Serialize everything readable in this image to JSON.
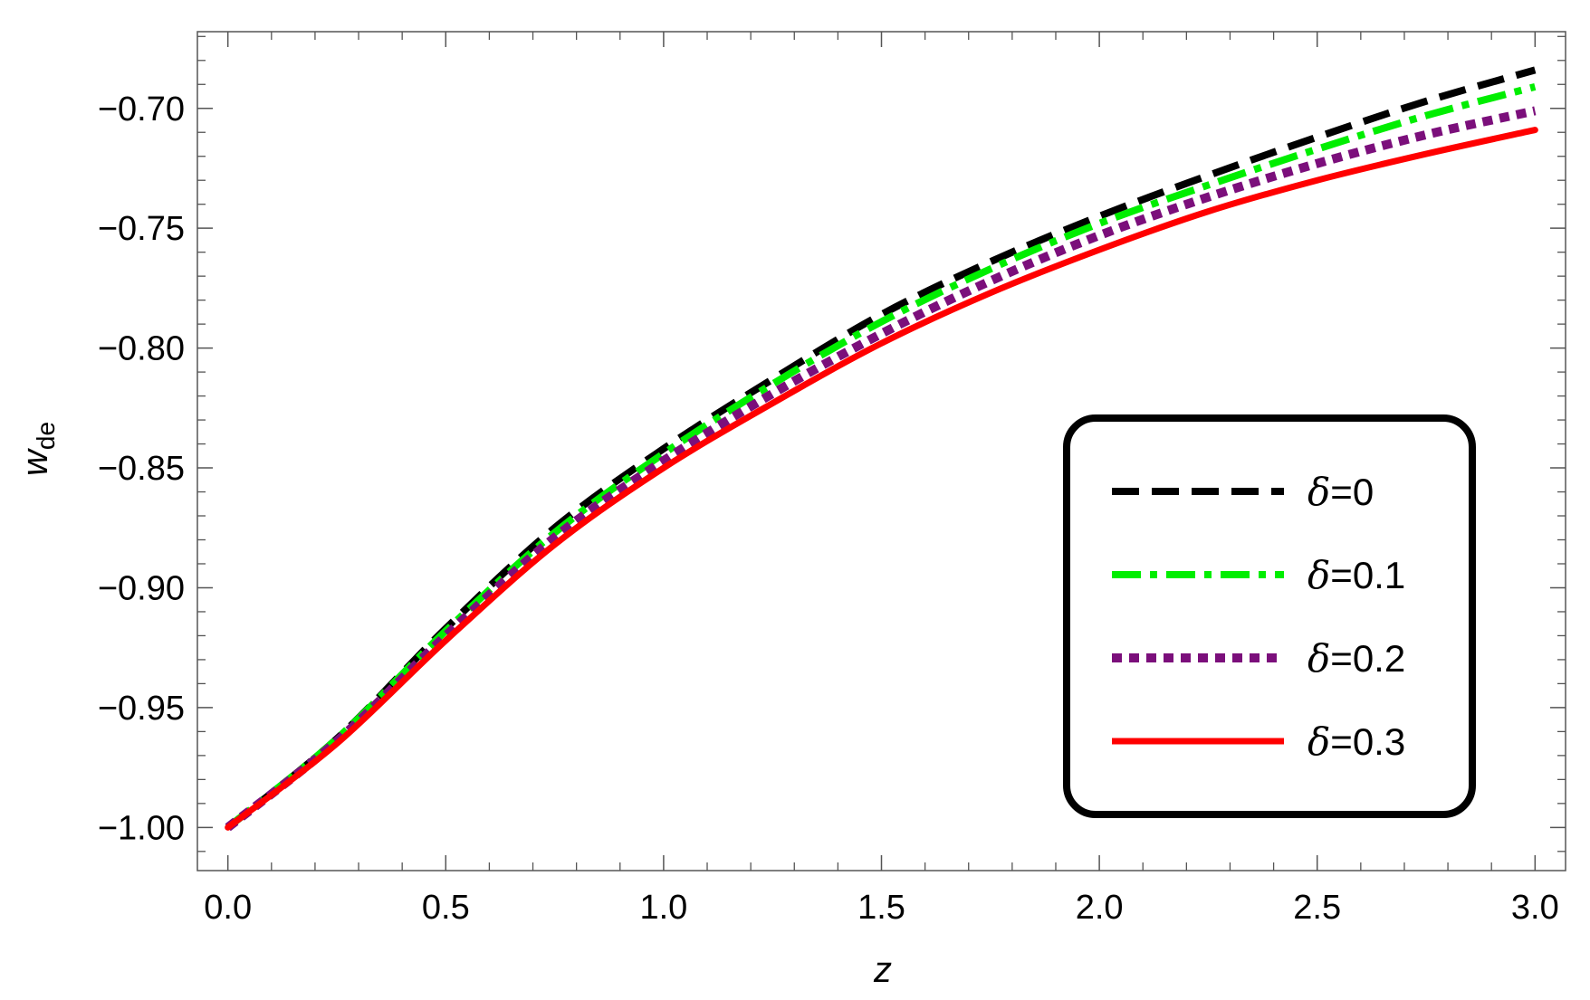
{
  "chart_data": {
    "type": "line",
    "title": "",
    "xlabel": "z",
    "ylabel": {
      "main": "w",
      "sub": "de"
    },
    "xlim": [
      -0.07,
      3.07
    ],
    "ylim": [
      -1.018,
      -0.668
    ],
    "xticks": [
      0.0,
      0.5,
      1.0,
      1.5,
      2.0,
      2.5,
      3.0
    ],
    "xtick_labels": [
      "0.0",
      "0.5",
      "1.0",
      "1.5",
      "2.0",
      "2.5",
      "3.0"
    ],
    "yticks": [
      -1.0,
      -0.95,
      -0.9,
      -0.85,
      -0.8,
      -0.75,
      -0.7
    ],
    "ytick_labels": [
      "−1.00",
      "−0.95",
      "−0.90",
      "−0.85",
      "−0.80",
      "−0.75",
      "−0.70"
    ],
    "grid": false,
    "legend_position": "right",
    "x": [
      0.0,
      0.25,
      0.5,
      0.75,
      1.0,
      1.25,
      1.5,
      1.75,
      2.0,
      2.25,
      2.5,
      2.75,
      3.0
    ],
    "series": [
      {
        "name": "δ=0",
        "legend_symbol": "δ",
        "legend_value": "=0",
        "color": "#000000",
        "style": "dashed",
        "values": [
          -1.0,
          -0.963,
          -0.917,
          -0.875,
          -0.842,
          -0.813,
          -0.786,
          -0.764,
          -0.745,
          -0.728,
          -0.712,
          -0.697,
          -0.684
        ]
      },
      {
        "name": "δ=0.1",
        "legend_symbol": "δ",
        "legend_value": "=0.1",
        "color": "#00ee00",
        "style": "dashdot",
        "values": [
          -1.0,
          -0.963,
          -0.918,
          -0.877,
          -0.844,
          -0.815,
          -0.789,
          -0.767,
          -0.748,
          -0.732,
          -0.717,
          -0.703,
          -0.691
        ]
      },
      {
        "name": "δ=0.2",
        "legend_symbol": "δ",
        "legend_value": "=0.2",
        "color": "#7b0f7b",
        "style": "dotted",
        "values": [
          -1.0,
          -0.964,
          -0.92,
          -0.879,
          -0.847,
          -0.819,
          -0.794,
          -0.772,
          -0.753,
          -0.737,
          -0.723,
          -0.711,
          -0.701
        ]
      },
      {
        "name": "δ=0.3",
        "legend_symbol": "δ",
        "legend_value": "=0.3",
        "color": "#ff0000",
        "style": "solid",
        "values": [
          -1.0,
          -0.965,
          -0.922,
          -0.882,
          -0.85,
          -0.823,
          -0.798,
          -0.777,
          -0.759,
          -0.743,
          -0.73,
          -0.719,
          -0.709
        ]
      }
    ]
  }
}
